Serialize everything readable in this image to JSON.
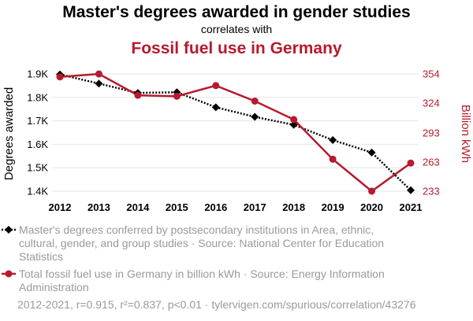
{
  "header": {
    "title": "Master's degrees awarded in gender studies",
    "subtitle": "correlates with",
    "title2": "Fossil fuel use in Germany"
  },
  "chart_data": {
    "type": "line",
    "x": [
      "2012",
      "2013",
      "2014",
      "2015",
      "2016",
      "2017",
      "2018",
      "2019",
      "2020",
      "2021"
    ],
    "series": [
      {
        "name": "Master's degrees conferred by postsecondary institutions in Area, ethnic, cultural, gender, and group studies · Source: National Center for Education Statistics",
        "axis": "left",
        "color": "#000000",
        "line_style": "dotted",
        "marker": "diamond",
        "values": [
          1898,
          1859,
          1819,
          1822,
          1758,
          1717,
          1683,
          1618,
          1565,
          1404
        ]
      },
      {
        "name": "Total fossil fuel use in Germany in billion kWh · Source: Energy Information Administration",
        "axis": "right",
        "color": "#b71a2e",
        "line_style": "solid",
        "marker": "circle",
        "values": [
          351,
          354,
          332,
          331,
          342,
          326,
          307,
          266,
          233,
          262
        ]
      }
    ],
    "y_left": {
      "label": "Degrees awarded",
      "ticks": [
        1400,
        1500,
        1600,
        1700,
        1800,
        1900
      ],
      "tick_labels": [
        "1.4K",
        "1.5K",
        "1.6K",
        "1.7K",
        "1.8K",
        "1.9K"
      ],
      "range": [
        1400,
        1900
      ]
    },
    "y_right": {
      "label": "Billion kWh",
      "ticks": [
        233,
        263,
        293,
        324,
        354
      ],
      "tick_labels": [
        "233",
        "263",
        "293",
        "324",
        "354"
      ],
      "range": [
        233,
        354
      ]
    },
    "grid": true,
    "legend_position": "bottom"
  },
  "footer": {
    "stats": "2012-2021, r=0.915, r²=0.837, p<0.01 · tylervigen.com/spurious/correlation/43276"
  }
}
